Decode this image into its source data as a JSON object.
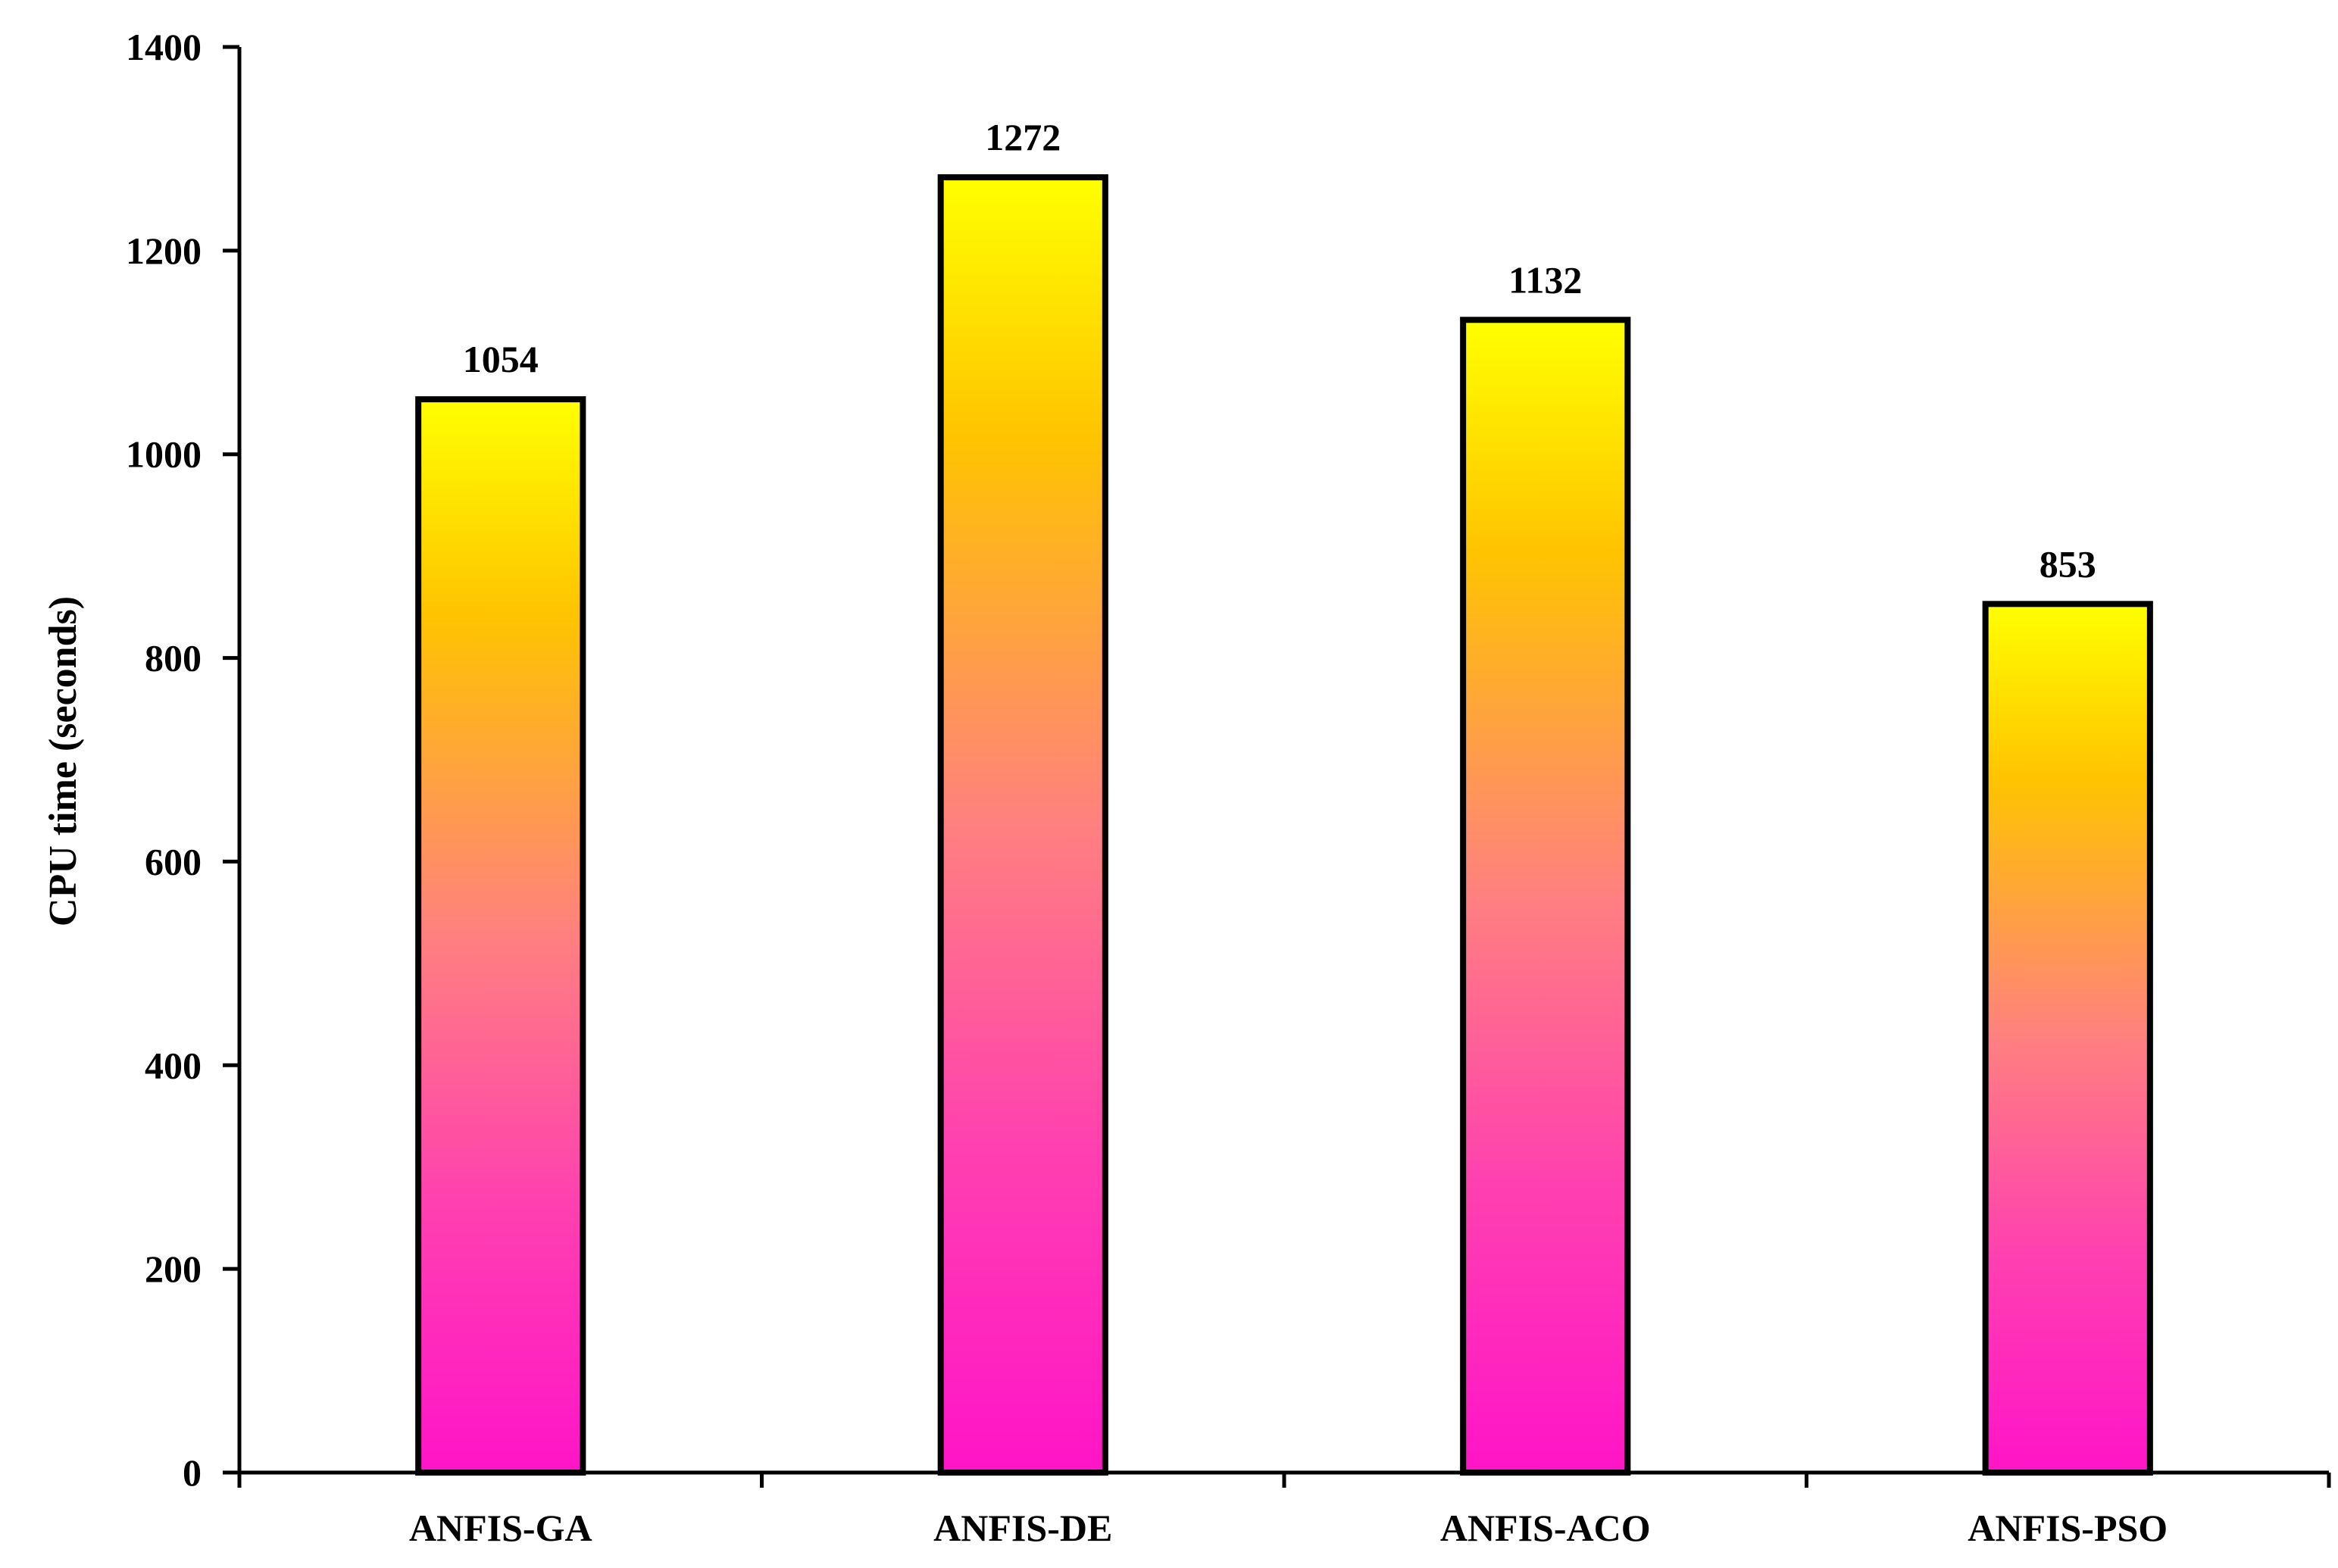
{
  "chart_data": {
    "type": "bar",
    "title": "",
    "xlabel": "",
    "ylabel": "CPU time (seconds)",
    "categories": [
      "ANFIS-GA",
      "ANFIS-DE",
      "ANFIS-ACO",
      "ANFIS-PSO"
    ],
    "values": [
      1054,
      1272,
      1132,
      853
    ],
    "data_labels": [
      "1054",
      "1272",
      "1132",
      "853"
    ],
    "ylim": [
      0,
      1400
    ],
    "yticks": [
      0,
      200,
      400,
      600,
      800,
      1000,
      1200,
      1400
    ],
    "ytick_labels": [
      "0",
      "200",
      "400",
      "600",
      "800",
      "1000",
      "1200",
      "1400"
    ],
    "grid": false,
    "legend": "none",
    "colors": {
      "bar_top": "#ffff00",
      "bar_mid_upper": "#ffc400",
      "bar_mid": "#ff8080",
      "bar_mid_lower": "#ff40b0",
      "bar_bottom": "#ff14c8",
      "bar_outline": "#000000",
      "axis": "#000000"
    }
  }
}
